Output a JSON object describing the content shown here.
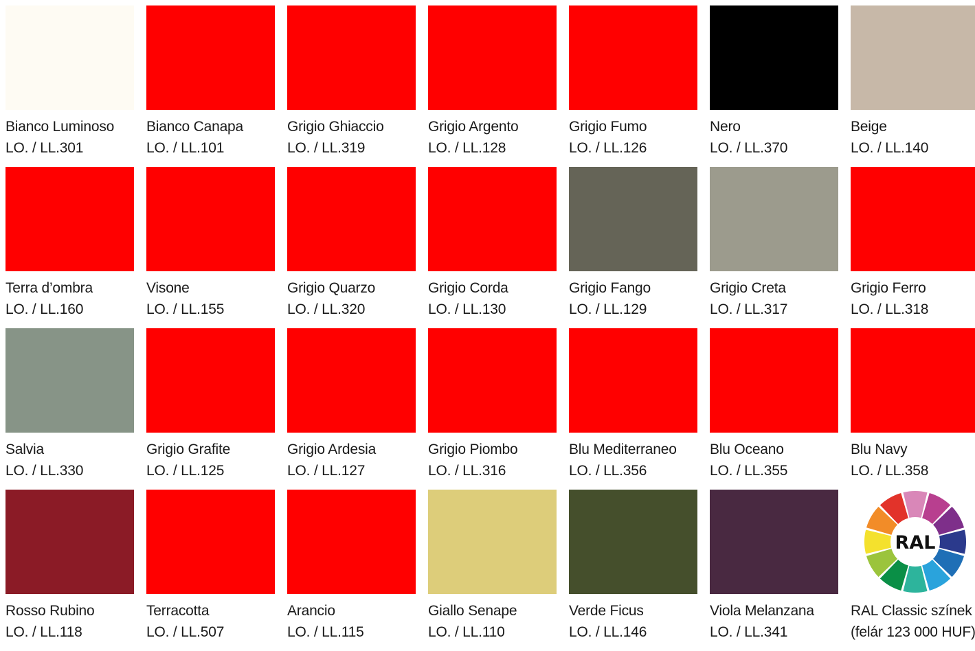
{
  "swatches": [
    {
      "name": "Bianco Luminoso",
      "code": "LO. / LL.301",
      "color": "#fefbf3"
    },
    {
      "name": "Bianco Canapa",
      "code": "LO. / LL.101",
      "color": "#ff0000"
    },
    {
      "name": "Grigio Ghiaccio",
      "code": "LO. / LL.319",
      "color": "#ff0000"
    },
    {
      "name": "Grigio Argento",
      "code": "LO. / LL.128",
      "color": "#ff0000"
    },
    {
      "name": "Grigio Fumo",
      "code": "LO. / LL.126",
      "color": "#ff0000"
    },
    {
      "name": "Nero",
      "code": "LO. / LL.370",
      "color": "#000000"
    },
    {
      "name": "Beige",
      "code": "LO. / LL.140",
      "color": "#c7b8a8"
    },
    {
      "name": "Terra d’ombra",
      "code": "LO. / LL.160",
      "color": "#ff0000"
    },
    {
      "name": "Visone",
      "code": "LO. / LL.155",
      "color": "#ff0000"
    },
    {
      "name": "Grigio Quarzo",
      "code": "LO. / LL.320",
      "color": "#ff0000"
    },
    {
      "name": "Grigio Corda",
      "code": "LO. / LL.130",
      "color": "#ff0000"
    },
    {
      "name": "Grigio Fango",
      "code": "LO. / LL.129",
      "color": "#656457"
    },
    {
      "name": "Grigio Creta",
      "code": "LO. / LL.317",
      "color": "#9c9b8d"
    },
    {
      "name": "Grigio Ferro",
      "code": "LO. / LL.318",
      "color": "#ff0000"
    },
    {
      "name": "Salvia",
      "code": "LO. / LL.330",
      "color": "#879487"
    },
    {
      "name": "Grigio Grafite",
      "code": "LO. / LL.125",
      "color": "#ff0000"
    },
    {
      "name": "Grigio Ardesia",
      "code": "LO. / LL.127",
      "color": "#ff0000"
    },
    {
      "name": "Grigio Piombo",
      "code": "LO. / LL.316",
      "color": "#ff0000"
    },
    {
      "name": "Blu Mediterraneo",
      "code": "LO. / LL.356",
      "color": "#ff0000"
    },
    {
      "name": "Blu Oceano",
      "code": "LO. / LL.355",
      "color": "#ff0000"
    },
    {
      "name": "Blu Navy",
      "code": "LO. / LL.358",
      "color": "#ff0000"
    },
    {
      "name": "Rosso Rubino",
      "code": "LO. / LL.118",
      "color": "#8b1b26"
    },
    {
      "name": "Terracotta",
      "code": "LO. / LL.507",
      "color": "#ff0000"
    },
    {
      "name": "Arancio",
      "code": "LO. / LL.115",
      "color": "#ff0000"
    },
    {
      "name": "Giallo Senape",
      "code": "LO. / LL.110",
      "color": "#ddcd7a"
    },
    {
      "name": "Verde Ficus",
      "code": "LO. / LL.146",
      "color": "#454f2c"
    },
    {
      "name": "Viola Melanzana",
      "code": "LO. / LL.341",
      "color": "#492941"
    }
  ],
  "ral": {
    "logo_text": "RAL",
    "name": "RAL Classic színek",
    "note": "(felár 123 000 HUF)",
    "wheel_colors": [
      "#d987b8",
      "#b83f8f",
      "#7e2f8a",
      "#2b3a8c",
      "#1f6fb6",
      "#2aa3dc",
      "#2db49c",
      "#0a8f46",
      "#9bc43c",
      "#f4e12d",
      "#f28c28",
      "#e2332a"
    ]
  }
}
